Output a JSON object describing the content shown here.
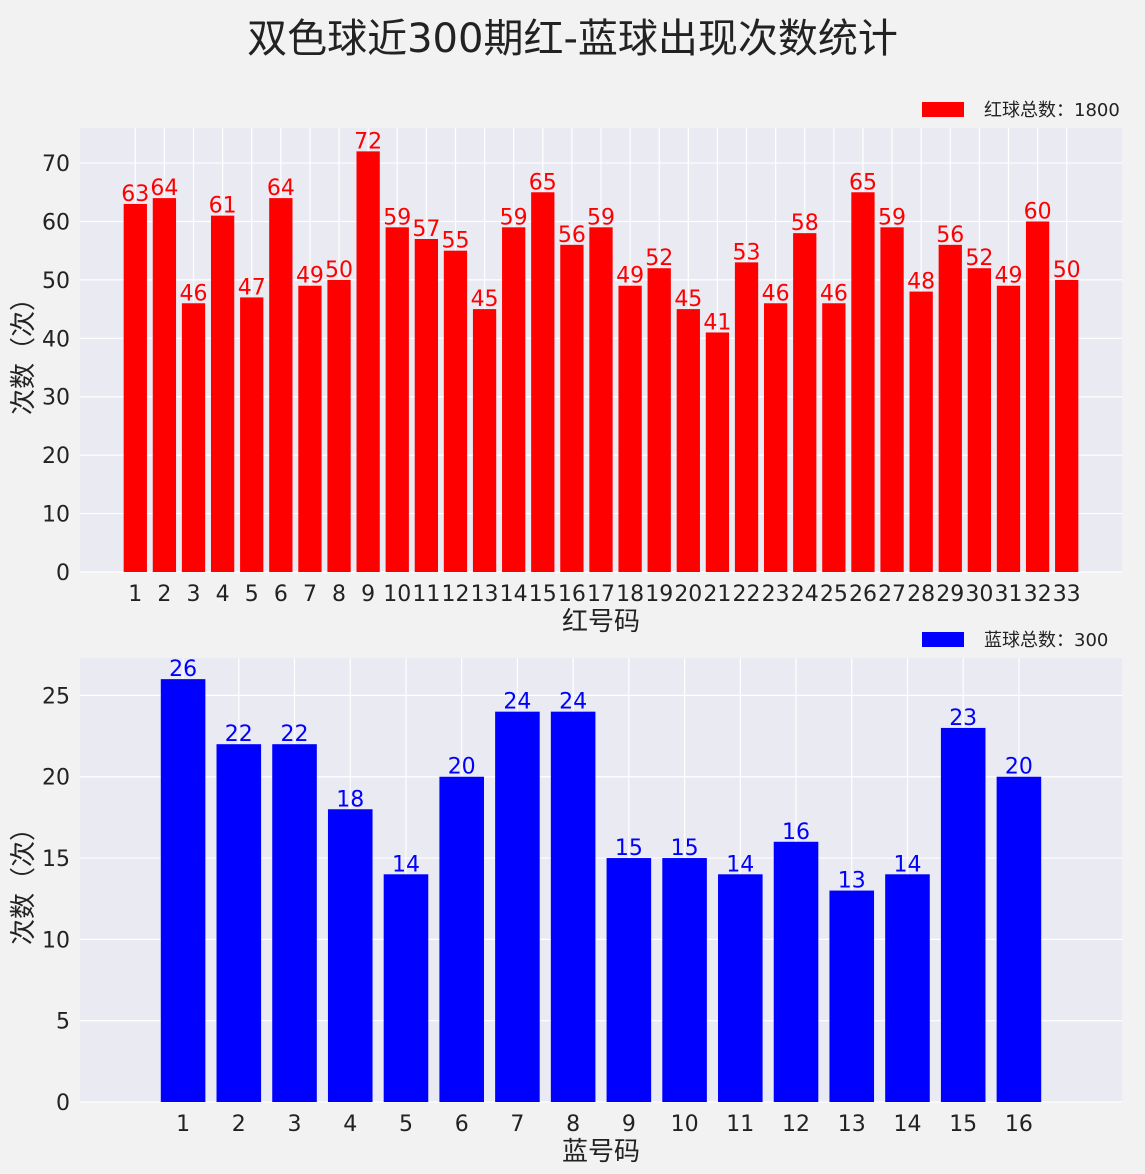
{
  "title": "双色球近300期红-蓝球出现次数统计",
  "colors": {
    "plot_bg": "#eaeaf2",
    "grid": "#ffffff",
    "red": "#ff0000",
    "blue": "#0000ff",
    "text": "#222222"
  },
  "chart_data": [
    {
      "type": "bar",
      "color": "#ff0000",
      "xlabel": "红号码",
      "ylabel": "次数（次）",
      "legend": "红球总数：1800",
      "legend_position": "top-right",
      "grid": true,
      "ylim": [
        0,
        76
      ],
      "yticks": [
        0,
        10,
        20,
        30,
        40,
        50,
        60,
        70
      ],
      "categories": [
        "1",
        "2",
        "3",
        "4",
        "5",
        "6",
        "7",
        "8",
        "9",
        "10",
        "11",
        "12",
        "13",
        "14",
        "15",
        "16",
        "17",
        "18",
        "19",
        "20",
        "21",
        "22",
        "23",
        "24",
        "25",
        "26",
        "27",
        "28",
        "29",
        "30",
        "31",
        "32",
        "33"
      ],
      "values": [
        63,
        64,
        46,
        61,
        47,
        64,
        49,
        50,
        72,
        59,
        57,
        55,
        45,
        59,
        65,
        56,
        59,
        49,
        52,
        45,
        41,
        53,
        46,
        58,
        46,
        65,
        59,
        48,
        56,
        52,
        49,
        60,
        50
      ]
    },
    {
      "type": "bar",
      "color": "#0000ff",
      "xlabel": "蓝号码",
      "ylabel": "次数（次）",
      "legend": "蓝球总数：300",
      "legend_position": "top-right",
      "grid": true,
      "ylim": [
        0,
        27.3
      ],
      "yticks": [
        0,
        5,
        10,
        15,
        20,
        25
      ],
      "categories": [
        "1",
        "2",
        "3",
        "4",
        "5",
        "6",
        "7",
        "8",
        "9",
        "10",
        "11",
        "12",
        "13",
        "14",
        "15",
        "16"
      ],
      "values": [
        26,
        22,
        22,
        18,
        14,
        20,
        24,
        24,
        15,
        15,
        14,
        16,
        13,
        14,
        23,
        20
      ]
    }
  ]
}
